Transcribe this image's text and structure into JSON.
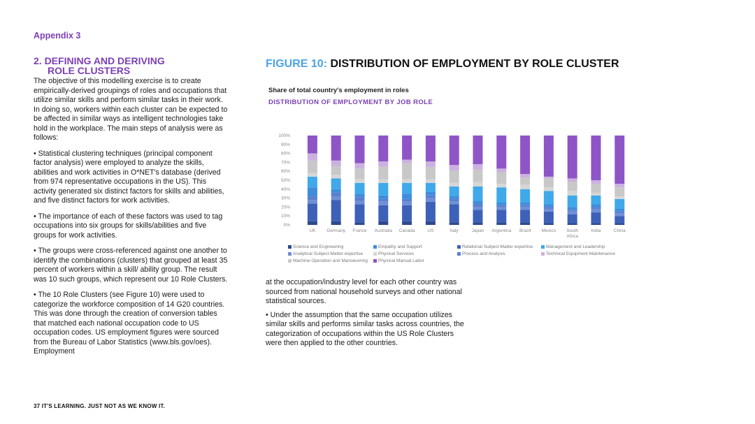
{
  "header": {
    "appendix": "Appendix 3"
  },
  "section": {
    "title_line1": "2. DEFINING AND DERIVING",
    "title_line2": "ROLE CLUSTERS",
    "paragraphs": [
      "The objective of this modelling exercise is to create empirically-derived groupings of roles and occupations that utilize similar skills and perform similar tasks in their work. In doing so, workers within each cluster can be expected to be affected in similar ways as intelligent technologies take hold in the workplace. The main steps of analysis were as follows:",
      "• Statistical clustering techniques (principal component factor analysis) were employed to analyze the skills, abilities and work activities in O*NET's database (derived from 974 representative occupations in the US). This activity generated six distinct factors for skills and abilities, and five distinct factors for work activities.",
      "• The importance of each of these factors was used to tag occupations into six groups for skills/abilities and five groups for work activities.",
      "• The groups were cross-referenced against one another to identify the combinations (clusters) that grouped at least 35 percent of workers within a skill/ ability group. The result was 10 such groups, which represent our 10 Role Clusters.",
      "• The 10 Role Clusters (see Figure 10) were used to categorize the workforce composition of 14 G20 countries. This was done through the creation of conversion tables that matched each national occupation code to US occupation codes. US employment figures were sourced from the Bureau of Labor Statistics (www.bls.gov/oes). Employment"
    ],
    "right_paragraphs": [
      "at the occupation/industry level for each other country was sourced from national household surveys and other national statistical sources.",
      "• Under the assumption that the same occupation utilizes similar skills and performs similar tasks across countries, the categorization of occupations within the US Role Clusters were then applied to the other countries."
    ]
  },
  "figure": {
    "number": "FIGURE 10:",
    "title": "DISTRIBUTION OF EMPLOYMENT BY ROLE CLUSTER",
    "subtitle": "Share of total country's employment in roles",
    "subtitle2": "DISTRIBUTION OF EMPLOYMENT BY JOB ROLE"
  },
  "footer": {
    "text": "37  IT'S LEARNING. JUST NOT AS WE KNOW IT."
  },
  "chart_data": {
    "type": "bar",
    "stacked": true,
    "categories": [
      "UK",
      "Germany",
      "France",
      "Australia",
      "Canada",
      "US",
      "Italy",
      "Japan",
      "Argentina",
      "Brazil",
      "Mexico",
      "South Africa",
      "India",
      "China"
    ],
    "y_ticks": [
      "0%",
      "10%",
      "20%",
      "30%",
      "40%",
      "50%",
      "60%",
      "70%",
      "80%",
      "90%",
      "100%"
    ],
    "ylim": [
      0,
      100
    ],
    "grid": false,
    "legend_position": "bottom",
    "series": [
      {
        "name": "Science and Engineering",
        "color": "#2e4a8c",
        "values": [
          4,
          4,
          3,
          4,
          4,
          4,
          3,
          3,
          3,
          3,
          2,
          2,
          2,
          2
        ]
      },
      {
        "name": "Relational Subject-Matter expertise",
        "color": "#3d61b8",
        "values": [
          20,
          24,
          20,
          18,
          18,
          22,
          20,
          14,
          14,
          14,
          13,
          10,
          12,
          8
        ]
      },
      {
        "name": "Analytical Subject-Matter expertise",
        "color": "#6f8fd6",
        "values": [
          4,
          4,
          4,
          4,
          4,
          4,
          3,
          3,
          3,
          3,
          3,
          3,
          4,
          3
        ]
      },
      {
        "name": "Process and Analysis",
        "color": "#5b7fd0",
        "values": [
          4,
          4,
          4,
          3,
          3,
          3,
          3,
          3,
          2,
          2,
          2,
          2,
          2,
          2
        ]
      },
      {
        "name": "Empathy and Support",
        "color": "#3f8ddb",
        "values": [
          10,
          4,
          4,
          4,
          6,
          4,
          3,
          4,
          3,
          3,
          3,
          3,
          3,
          3
        ]
      },
      {
        "name": "Management and Leadership",
        "color": "#3fa9ea",
        "values": [
          12,
          12,
          12,
          14,
          12,
          10,
          11,
          16,
          17,
          15,
          15,
          13,
          10,
          11
        ]
      },
      {
        "name": "Physical Services",
        "color": "#d6d6d6",
        "values": [
          4,
          4,
          4,
          4,
          4,
          4,
          4,
          5,
          4,
          5,
          4,
          5,
          3,
          3
        ]
      },
      {
        "name": "Machine Operation and Manoeuvring",
        "color": "#c8c8c8",
        "values": [
          14,
          10,
          12,
          14,
          18,
          14,
          14,
          14,
          13,
          8,
          10,
          10,
          10,
          10
        ]
      },
      {
        "name": "Technical Equipment Maintenance",
        "color": "#cbb1e0",
        "values": [
          8,
          6,
          6,
          6,
          4,
          6,
          6,
          6,
          4,
          4,
          2,
          4,
          4,
          4
        ]
      },
      {
        "name": "Physical Manual Labor",
        "color": "#8e55c7",
        "values": [
          20,
          28,
          31,
          29,
          27,
          29,
          33,
          32,
          37,
          43,
          46,
          48,
          50,
          54
        ]
      }
    ]
  }
}
